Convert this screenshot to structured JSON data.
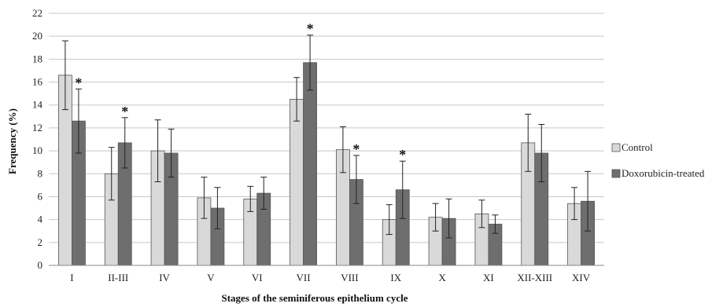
{
  "chart_data": {
    "type": "bar",
    "title": "",
    "xlabel": "Stages of the seminiferous epithelium cycle",
    "ylabel": "Frequency (%)",
    "ylim": [
      0,
      22
    ],
    "yticks": [
      0,
      2,
      4,
      6,
      8,
      10,
      12,
      14,
      16,
      18,
      20,
      22
    ],
    "grid": "horizontal",
    "legend_position": "right",
    "categories": [
      "I",
      "II-III",
      "IV",
      "V",
      "VI",
      "VII",
      "VIII",
      "IX",
      "X",
      "XI",
      "XII-XIII",
      "XIV"
    ],
    "series": [
      {
        "name": "Control",
        "color": "#d9d9d9",
        "values": [
          16.6,
          8.0,
          10.0,
          5.9,
          5.8,
          14.5,
          10.1,
          4.0,
          4.2,
          4.5,
          10.7,
          5.4
        ],
        "errors": [
          3.0,
          2.3,
          2.7,
          1.8,
          1.1,
          1.9,
          2.0,
          1.3,
          1.2,
          1.2,
          2.5,
          1.4
        ],
        "significant": [
          false,
          false,
          false,
          false,
          false,
          false,
          false,
          false,
          false,
          false,
          false,
          false
        ]
      },
      {
        "name": "Doxorubicin-treated",
        "color": "#6e6e6e",
        "values": [
          12.6,
          10.7,
          9.8,
          5.0,
          6.3,
          17.7,
          7.5,
          6.6,
          4.1,
          3.6,
          9.8,
          5.6
        ],
        "errors": [
          2.8,
          2.2,
          2.1,
          1.8,
          1.4,
          2.4,
          2.1,
          2.5,
          1.7,
          0.8,
          2.5,
          2.6
        ],
        "significant": [
          true,
          true,
          false,
          false,
          false,
          true,
          true,
          true,
          false,
          false,
          false,
          false
        ]
      }
    ],
    "significance_marker": "*"
  }
}
